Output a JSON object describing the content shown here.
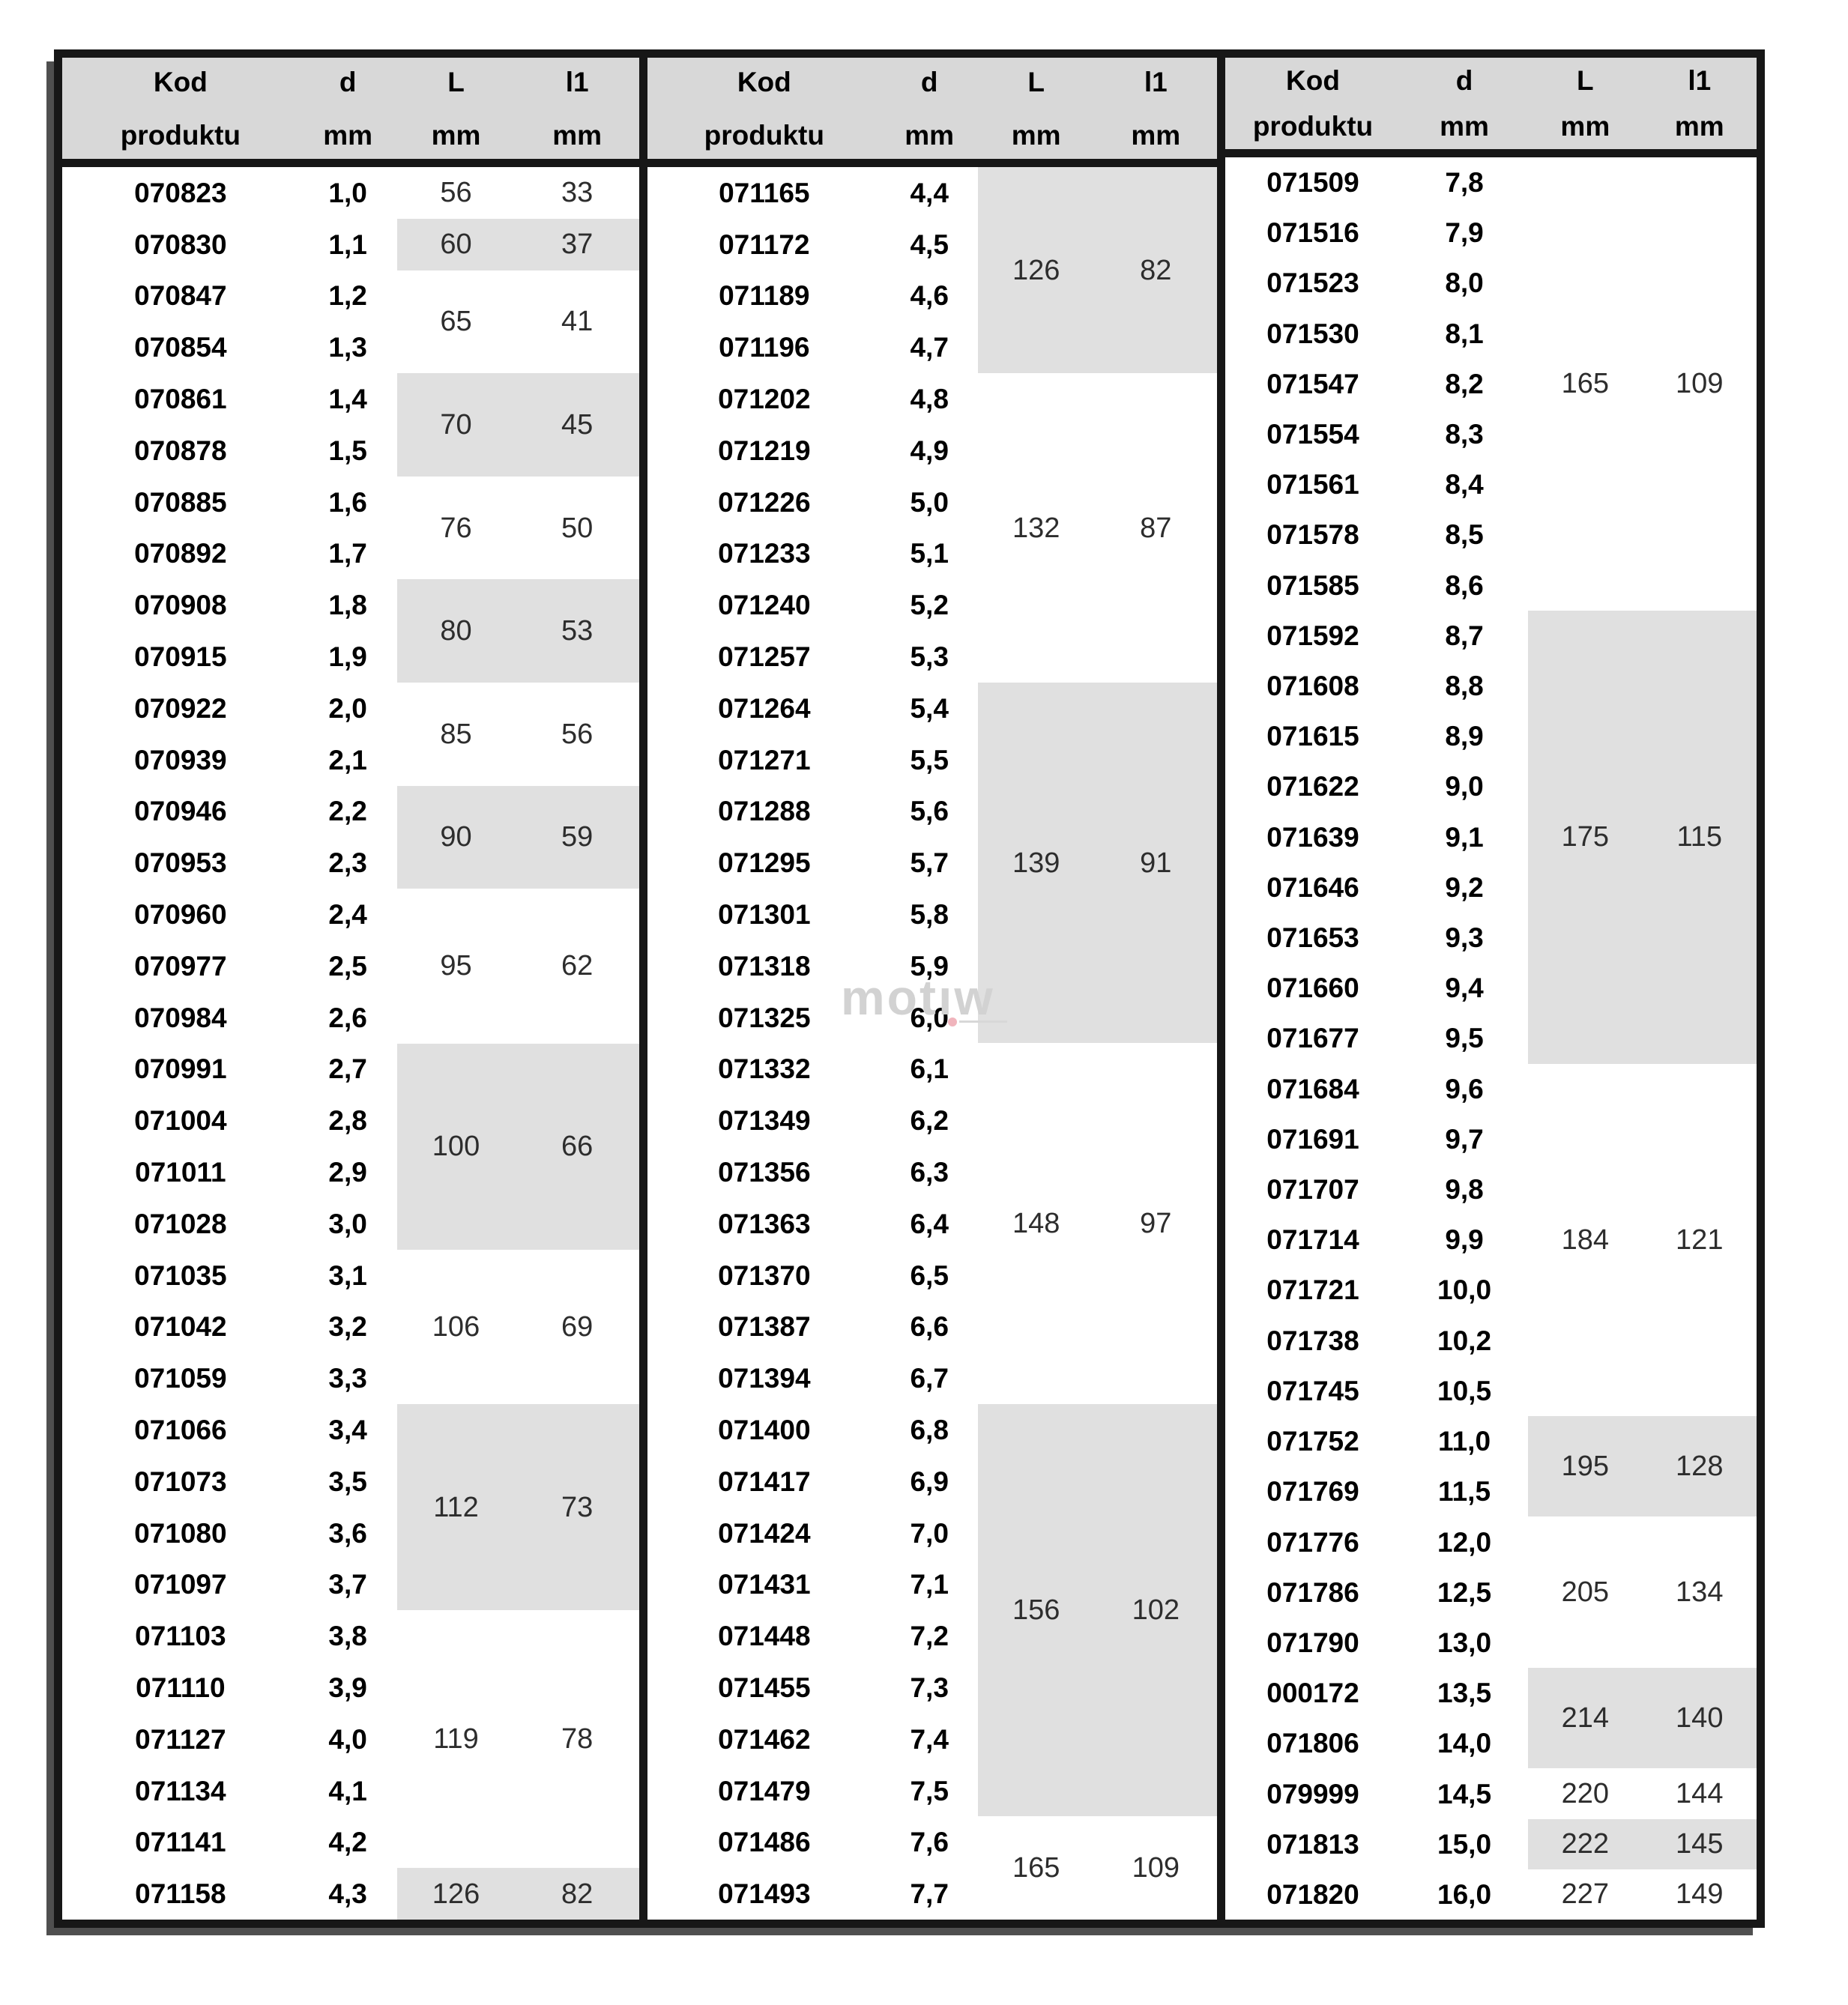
{
  "watermark": {
    "text": "motıw"
  },
  "colors": {
    "border": "#171717",
    "header_bg": "#d8d8d8",
    "band_shaded": "#e0e0e0",
    "code_text": "#000000",
    "value_text": "#2d2d2d"
  },
  "table": {
    "columns": [
      {
        "line1": "Kod",
        "line2": "produktu"
      },
      {
        "line1": "d",
        "line2": "mm"
      },
      {
        "line1": "L",
        "line2": "mm"
      },
      {
        "line1": "l1",
        "line2": "mm"
      }
    ],
    "groups": [
      {
        "bands": [
          {
            "L": "56",
            "l1": "33",
            "shaded": false,
            "rows": [
              {
                "kod": "070823",
                "d": "1,0"
              }
            ]
          },
          {
            "L": "60",
            "l1": "37",
            "shaded": true,
            "rows": [
              {
                "kod": "070830",
                "d": "1,1"
              }
            ]
          },
          {
            "L": "65",
            "l1": "41",
            "shaded": false,
            "rows": [
              {
                "kod": "070847",
                "d": "1,2"
              },
              {
                "kod": "070854",
                "d": "1,3"
              }
            ]
          },
          {
            "L": "70",
            "l1": "45",
            "shaded": true,
            "rows": [
              {
                "kod": "070861",
                "d": "1,4"
              },
              {
                "kod": "070878",
                "d": "1,5"
              }
            ]
          },
          {
            "L": "76",
            "l1": "50",
            "shaded": false,
            "rows": [
              {
                "kod": "070885",
                "d": "1,6"
              },
              {
                "kod": "070892",
                "d": "1,7"
              }
            ]
          },
          {
            "L": "80",
            "l1": "53",
            "shaded": true,
            "rows": [
              {
                "kod": "070908",
                "d": "1,8"
              },
              {
                "kod": "070915",
                "d": "1,9"
              }
            ]
          },
          {
            "L": "85",
            "l1": "56",
            "shaded": false,
            "rows": [
              {
                "kod": "070922",
                "d": "2,0"
              },
              {
                "kod": "070939",
                "d": "2,1"
              }
            ]
          },
          {
            "L": "90",
            "l1": "59",
            "shaded": true,
            "rows": [
              {
                "kod": "070946",
                "d": "2,2"
              },
              {
                "kod": "070953",
                "d": "2,3"
              }
            ]
          },
          {
            "L": "95",
            "l1": "62",
            "shaded": false,
            "rows": [
              {
                "kod": "070960",
                "d": "2,4"
              },
              {
                "kod": "070977",
                "d": "2,5"
              },
              {
                "kod": "070984",
                "d": "2,6"
              }
            ]
          },
          {
            "L": "100",
            "l1": "66",
            "shaded": true,
            "rows": [
              {
                "kod": "070991",
                "d": "2,7"
              },
              {
                "kod": "071004",
                "d": "2,8"
              },
              {
                "kod": "071011",
                "d": "2,9"
              },
              {
                "kod": "071028",
                "d": "3,0"
              }
            ]
          },
          {
            "L": "106",
            "l1": "69",
            "shaded": false,
            "rows": [
              {
                "kod": "071035",
                "d": "3,1"
              },
              {
                "kod": "071042",
                "d": "3,2"
              },
              {
                "kod": "071059",
                "d": "3,3"
              }
            ]
          },
          {
            "L": "112",
            "l1": "73",
            "shaded": true,
            "rows": [
              {
                "kod": "071066",
                "d": "3,4"
              },
              {
                "kod": "071073",
                "d": "3,5"
              },
              {
                "kod": "071080",
                "d": "3,6"
              },
              {
                "kod": "071097",
                "d": "3,7"
              }
            ]
          },
          {
            "L": "119",
            "l1": "78",
            "shaded": false,
            "rows": [
              {
                "kod": "071103",
                "d": "3,8"
              },
              {
                "kod": "071110",
                "d": "3,9"
              },
              {
                "kod": "071127",
                "d": "4,0"
              },
              {
                "kod": "071134",
                "d": "4,1"
              },
              {
                "kod": "071141",
                "d": "4,2"
              }
            ]
          },
          {
            "L": "126",
            "l1": "82",
            "shaded": true,
            "rows": [
              {
                "kod": "071158",
                "d": "4,3"
              }
            ]
          }
        ]
      },
      {
        "bands": [
          {
            "L": "126",
            "l1": "82",
            "shaded": true,
            "rows": [
              {
                "kod": "071165",
                "d": "4,4"
              },
              {
                "kod": "071172",
                "d": "4,5"
              },
              {
                "kod": "071189",
                "d": "4,6"
              },
              {
                "kod": "071196",
                "d": "4,7"
              }
            ]
          },
          {
            "L": "132",
            "l1": "87",
            "shaded": false,
            "rows": [
              {
                "kod": "071202",
                "d": "4,8"
              },
              {
                "kod": "071219",
                "d": "4,9"
              },
              {
                "kod": "071226",
                "d": "5,0"
              },
              {
                "kod": "071233",
                "d": "5,1"
              },
              {
                "kod": "071240",
                "d": "5,2"
              },
              {
                "kod": "071257",
                "d": "5,3"
              }
            ]
          },
          {
            "L": "139",
            "l1": "91",
            "shaded": true,
            "rows": [
              {
                "kod": "071264",
                "d": "5,4"
              },
              {
                "kod": "071271",
                "d": "5,5"
              },
              {
                "kod": "071288",
                "d": "5,6"
              },
              {
                "kod": "071295",
                "d": "5,7"
              },
              {
                "kod": "071301",
                "d": "5,8"
              },
              {
                "kod": "071318",
                "d": "5,9"
              },
              {
                "kod": "071325",
                "d": "6,0"
              }
            ]
          },
          {
            "L": "148",
            "l1": "97",
            "shaded": false,
            "rows": [
              {
                "kod": "071332",
                "d": "6,1"
              },
              {
                "kod": "071349",
                "d": "6,2"
              },
              {
                "kod": "071356",
                "d": "6,3"
              },
              {
                "kod": "071363",
                "d": "6,4"
              },
              {
                "kod": "071370",
                "d": "6,5"
              },
              {
                "kod": "071387",
                "d": "6,6"
              },
              {
                "kod": "071394",
                "d": "6,7"
              }
            ]
          },
          {
            "L": "156",
            "l1": "102",
            "shaded": true,
            "rows": [
              {
                "kod": "071400",
                "d": "6,8"
              },
              {
                "kod": "071417",
                "d": "6,9"
              },
              {
                "kod": "071424",
                "d": "7,0"
              },
              {
                "kod": "071431",
                "d": "7,1"
              },
              {
                "kod": "071448",
                "d": "7,2"
              },
              {
                "kod": "071455",
                "d": "7,3"
              },
              {
                "kod": "071462",
                "d": "7,4"
              },
              {
                "kod": "071479",
                "d": "7,5"
              }
            ]
          },
          {
            "L": "165",
            "l1": "109",
            "shaded": false,
            "rows": [
              {
                "kod": "071486",
                "d": "7,6"
              },
              {
                "kod": "071493",
                "d": "7,7"
              }
            ]
          }
        ]
      },
      {
        "bands": [
          {
            "L": "165",
            "l1": "109",
            "shaded": false,
            "rows": [
              {
                "kod": "071509",
                "d": "7,8"
              },
              {
                "kod": "071516",
                "d": "7,9"
              },
              {
                "kod": "071523",
                "d": "8,0"
              },
              {
                "kod": "071530",
                "d": "8,1"
              },
              {
                "kod": "071547",
                "d": "8,2"
              },
              {
                "kod": "071554",
                "d": "8,3"
              },
              {
                "kod": "071561",
                "d": "8,4"
              },
              {
                "kod": "071578",
                "d": "8,5"
              },
              {
                "kod": "071585",
                "d": "8,6"
              }
            ]
          },
          {
            "L": "175",
            "l1": "115",
            "shaded": true,
            "rows": [
              {
                "kod": "071592",
                "d": "8,7"
              },
              {
                "kod": "071608",
                "d": "8,8"
              },
              {
                "kod": "071615",
                "d": "8,9"
              },
              {
                "kod": "071622",
                "d": "9,0"
              },
              {
                "kod": "071639",
                "d": "9,1"
              },
              {
                "kod": "071646",
                "d": "9,2"
              },
              {
                "kod": "071653",
                "d": "9,3"
              },
              {
                "kod": "071660",
                "d": "9,4"
              },
              {
                "kod": "071677",
                "d": "9,5"
              }
            ]
          },
          {
            "L": "184",
            "l1": "121",
            "shaded": false,
            "rows": [
              {
                "kod": "071684",
                "d": "9,6"
              },
              {
                "kod": "071691",
                "d": "9,7"
              },
              {
                "kod": "071707",
                "d": "9,8"
              },
              {
                "kod": "071714",
                "d": "9,9"
              },
              {
                "kod": "071721",
                "d": "10,0"
              },
              {
                "kod": "071738",
                "d": "10,2"
              },
              {
                "kod": "071745",
                "d": "10,5"
              }
            ]
          },
          {
            "L": "195",
            "l1": "128",
            "shaded": true,
            "rows": [
              {
                "kod": "071752",
                "d": "11,0"
              },
              {
                "kod": "071769",
                "d": "11,5"
              }
            ]
          },
          {
            "L": "205",
            "l1": "134",
            "shaded": false,
            "rows": [
              {
                "kod": "071776",
                "d": "12,0"
              },
              {
                "kod": "071786",
                "d": "12,5"
              },
              {
                "kod": "071790",
                "d": "13,0"
              }
            ]
          },
          {
            "L": "214",
            "l1": "140",
            "shaded": true,
            "rows": [
              {
                "kod": "000172",
                "d": "13,5"
              },
              {
                "kod": "071806",
                "d": "14,0"
              }
            ]
          },
          {
            "L": "220",
            "l1": "144",
            "shaded": false,
            "rows": [
              {
                "kod": "079999",
                "d": "14,5"
              }
            ]
          },
          {
            "L": "222",
            "l1": "145",
            "shaded": true,
            "rows": [
              {
                "kod": "071813",
                "d": "15,0"
              }
            ]
          },
          {
            "L": "227",
            "l1": "149",
            "shaded": false,
            "rows": [
              {
                "kod": "071820",
                "d": "16,0"
              }
            ]
          }
        ]
      }
    ]
  }
}
